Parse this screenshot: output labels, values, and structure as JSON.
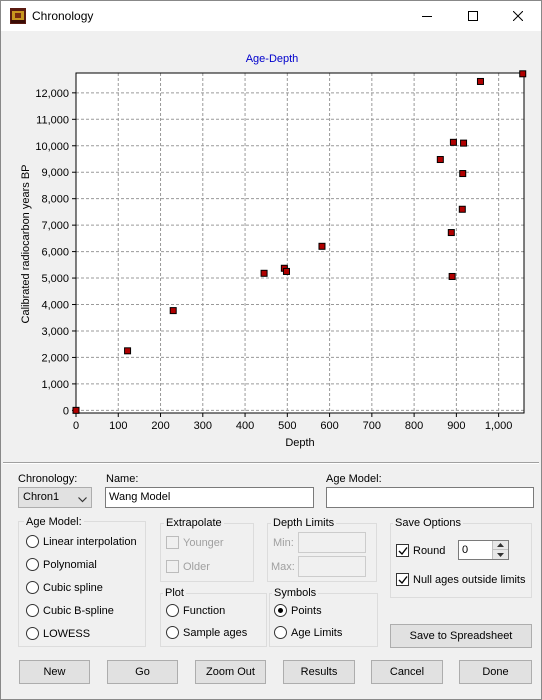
{
  "window": {
    "title": "Chronology"
  },
  "chart_data": {
    "type": "scatter",
    "title": "Age-Depth",
    "xlabel": "Depth",
    "ylabel": "Calibrated radiocarbon years BP",
    "xlim": [
      0,
      1060
    ],
    "ylim": [
      -100,
      12750
    ],
    "xticks": [
      0,
      100,
      200,
      300,
      400,
      500,
      600,
      700,
      800,
      900,
      1000
    ],
    "xtick_labels": [
      "0",
      "100",
      "200",
      "300",
      "400",
      "500",
      "600",
      "700",
      "800",
      "900",
      "1,000"
    ],
    "yticks": [
      0,
      1000,
      2000,
      3000,
      4000,
      5000,
      6000,
      7000,
      8000,
      9000,
      10000,
      11000,
      12000
    ],
    "ytick_labels": [
      "0",
      "1,000",
      "2,000",
      "3,000",
      "4,000",
      "5,000",
      "6,000",
      "7,000",
      "8,000",
      "9,000",
      "10,000",
      "11,000",
      "12,000"
    ],
    "grid": true,
    "marker_color": "#b00000",
    "points": [
      {
        "x": 0,
        "y": 0
      },
      {
        "x": 122,
        "y": 2250
      },
      {
        "x": 230,
        "y": 3770
      },
      {
        "x": 445,
        "y": 5180
      },
      {
        "x": 493,
        "y": 5370
      },
      {
        "x": 498,
        "y": 5250
      },
      {
        "x": 582,
        "y": 6200
      },
      {
        "x": 862,
        "y": 9480
      },
      {
        "x": 888,
        "y": 6720
      },
      {
        "x": 890,
        "y": 5060
      },
      {
        "x": 893,
        "y": 10130
      },
      {
        "x": 914,
        "y": 7600
      },
      {
        "x": 915,
        "y": 8950
      },
      {
        "x": 917,
        "y": 10100
      },
      {
        "x": 957,
        "y": 12430
      },
      {
        "x": 1057,
        "y": 12720
      }
    ]
  },
  "form": {
    "chronology_label": "Chronology:",
    "chronology_value": "Chron1",
    "name_label": "Name:",
    "name_value": "Wang Model",
    "age_model_label": "Age Model:",
    "age_model_value": ""
  },
  "age_model_group": {
    "title": "Age Model:",
    "options": [
      "Linear interpolation",
      "Polynomial",
      "Cubic spline",
      "Cubic B-spline",
      "LOWESS"
    ]
  },
  "extrapolate_group": {
    "title": "Extrapolate",
    "younger": "Younger",
    "older": "Older"
  },
  "depth_limits_group": {
    "title": "Depth Limits",
    "min_label": "Min:",
    "max_label": "Max:"
  },
  "plot_group": {
    "title": "Plot",
    "function": "Function",
    "sample_ages": "Sample ages"
  },
  "symbols_group": {
    "title": "Symbols",
    "points": "Points",
    "age_limits": "Age Limits"
  },
  "save_options_group": {
    "title": "Save Options",
    "round": "Round",
    "round_value": "0",
    "null_ages": "Null ages outside limits",
    "save_button": "Save to Spreadsheet"
  },
  "buttons": {
    "new": "New",
    "go": "Go",
    "zoom_out": "Zoom Out",
    "results": "Results",
    "cancel": "Cancel",
    "done": "Done"
  }
}
